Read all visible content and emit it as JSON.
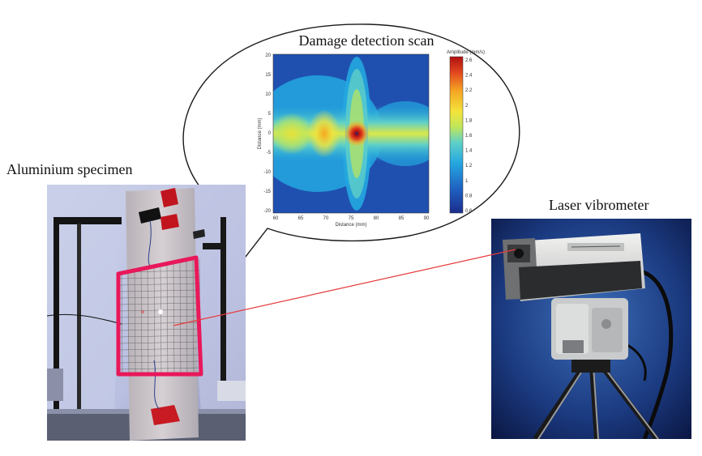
{
  "labels": {
    "scan_title": "Damage detection scan",
    "specimen": "Aluminium specimen",
    "vibrometer": "Laser vibrometer"
  },
  "scan": {
    "xlabel": "Distance (mm)",
    "ylabel": "Distance (mm)",
    "colorbar_label": "Amplitude (mm/s)",
    "x_ticks": [
      "60",
      "65",
      "70",
      "75",
      "80",
      "85",
      "90"
    ],
    "y_ticks": [
      "20",
      "15",
      "10",
      "5",
      "0",
      "-5",
      "-10",
      "-15",
      "-20"
    ],
    "colorbar_ticks": [
      "2.6",
      "2.4",
      "2.2",
      "2",
      "1.8",
      "1.6",
      "1.4",
      "1.2",
      "1",
      "0.8",
      "0.6"
    ],
    "colormap": [
      "#1c2d8c",
      "#1f5fc0",
      "#24a7e0",
      "#5fd0c8",
      "#bfe65a",
      "#f3e33a",
      "#f5a623",
      "#e2461f",
      "#b01010"
    ]
  },
  "colors": {
    "region_frame": "#e8185a",
    "laser_beam": "#e83a3a",
    "speech_bubble_outline": "#1a1a1a"
  },
  "icons": {
    "specimen_photo": "specimen-photo-icon",
    "vibrometer_photo": "laser-vibrometer-photo-icon"
  }
}
